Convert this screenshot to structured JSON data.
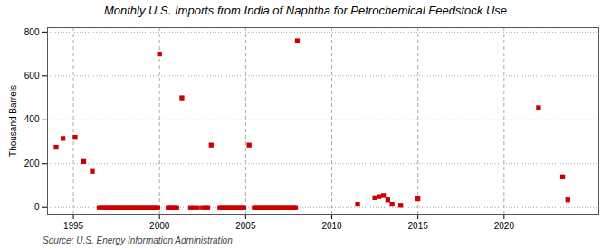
{
  "chart_data": {
    "type": "scatter",
    "title": "Monthly U.S. Imports from India of Naphtha for Petrochemical Feedstock Use",
    "ylabel": "Thousand Barrels",
    "source": "Source: U.S. Energy Information Administration",
    "color": "#cc0000",
    "marker": "square",
    "grid": true,
    "xlim": [
      1993.5,
      2025.5
    ],
    "ylim": [
      -30,
      820
    ],
    "xticks": [
      1995,
      2000,
      2005,
      2010,
      2015,
      2020
    ],
    "yticks": [
      0,
      200,
      400,
      600,
      800
    ],
    "x": [
      1994.0,
      1994.4,
      1995.1,
      1995.6,
      1996.1,
      1996.5,
      1996.6,
      1996.7,
      1996.8,
      1996.9,
      1997.0,
      1997.1,
      1997.2,
      1997.3,
      1997.4,
      1997.5,
      1997.6,
      1997.7,
      1997.8,
      1997.9,
      1998.0,
      1998.1,
      1998.2,
      1998.3,
      1998.4,
      1998.5,
      1998.6,
      1998.7,
      1998.8,
      1998.9,
      1999.0,
      1999.1,
      1999.2,
      1999.3,
      1999.4,
      1999.5,
      1999.6,
      1999.7,
      1999.8,
      1999.9,
      2000.0,
      2000.5,
      2000.6,
      2000.7,
      2000.8,
      2000.9,
      2001.0,
      2001.3,
      2001.8,
      2002.0,
      2002.2,
      2002.5,
      2002.7,
      2002.8,
      2003.0,
      2003.5,
      2003.6,
      2003.7,
      2003.8,
      2003.9,
      2004.0,
      2004.1,
      2004.2,
      2004.3,
      2004.4,
      2004.5,
      2004.6,
      2004.7,
      2004.8,
      2004.9,
      2005.2,
      2005.5,
      2005.6,
      2005.7,
      2005.8,
      2005.9,
      2006.0,
      2006.1,
      2006.2,
      2006.3,
      2006.4,
      2006.5,
      2006.6,
      2006.7,
      2006.8,
      2006.9,
      2007.0,
      2007.1,
      2007.2,
      2007.3,
      2007.4,
      2007.5,
      2007.6,
      2007.7,
      2007.8,
      2007.9,
      2008.0,
      2011.5,
      2012.5,
      2012.75,
      2013.0,
      2013.25,
      2013.5,
      2014.0,
      2015.0,
      2022.0,
      2023.4,
      2023.7
    ],
    "values": [
      275,
      315,
      320,
      210,
      165,
      0,
      0,
      0,
      0,
      0,
      0,
      0,
      0,
      0,
      0,
      0,
      0,
      0,
      0,
      0,
      0,
      0,
      0,
      0,
      0,
      0,
      0,
      0,
      0,
      0,
      0,
      0,
      0,
      0,
      0,
      0,
      0,
      0,
      0,
      0,
      700,
      0,
      0,
      0,
      0,
      0,
      0,
      500,
      0,
      0,
      0,
      0,
      0,
      0,
      285,
      0,
      0,
      0,
      0,
      0,
      0,
      0,
      0,
      0,
      0,
      0,
      0,
      0,
      0,
      0,
      285,
      0,
      0,
      0,
      0,
      0,
      0,
      0,
      0,
      0,
      0,
      0,
      0,
      0,
      0,
      0,
      0,
      0,
      0,
      0,
      0,
      0,
      0,
      0,
      0,
      0,
      760,
      15,
      45,
      50,
      55,
      35,
      15,
      10,
      40,
      455,
      140,
      35
    ]
  }
}
